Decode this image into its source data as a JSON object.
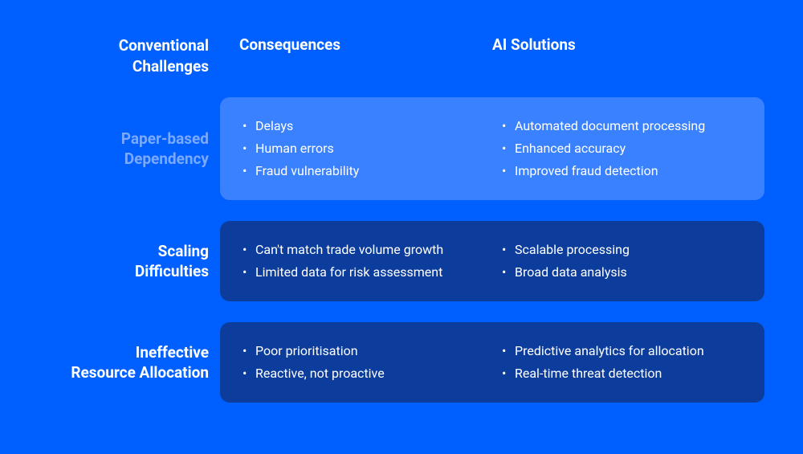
{
  "background_color": "#0060ff",
  "label_dim_color": "#7aa9ff",
  "text_color": "#ffffff",
  "header": {
    "challenges_label": "Conventional Challenges",
    "consequences_label": "Consequences",
    "solutions_label": "AI Solutions"
  },
  "rows": [
    {
      "label": "Paper-based Dependency",
      "label_style": "dim",
      "card_bg": "#3a81ff",
      "consequences": [
        "Delays",
        "Human errors",
        "Fraud vulnerability"
      ],
      "solutions": [
        "Automated document processing",
        "Enhanced accuracy",
        "Improved fraud detection"
      ]
    },
    {
      "label": "Scaling Difficulties",
      "label_style": "bright",
      "card_bg": "#0c3d9d",
      "consequences": [
        "Can't match trade volume growth",
        "Limited data for risk assessment"
      ],
      "solutions": [
        "Scalable processing",
        "Broad data analysis"
      ]
    },
    {
      "label": "Ineffective Resource Allocation",
      "label_style": "bright",
      "card_bg": "#0c3d9d",
      "consequences": [
        "Poor prioritisation",
        "Reactive, not proactive"
      ],
      "solutions": [
        "Predictive analytics for allocation",
        "Real-time threat detection"
      ]
    }
  ]
}
